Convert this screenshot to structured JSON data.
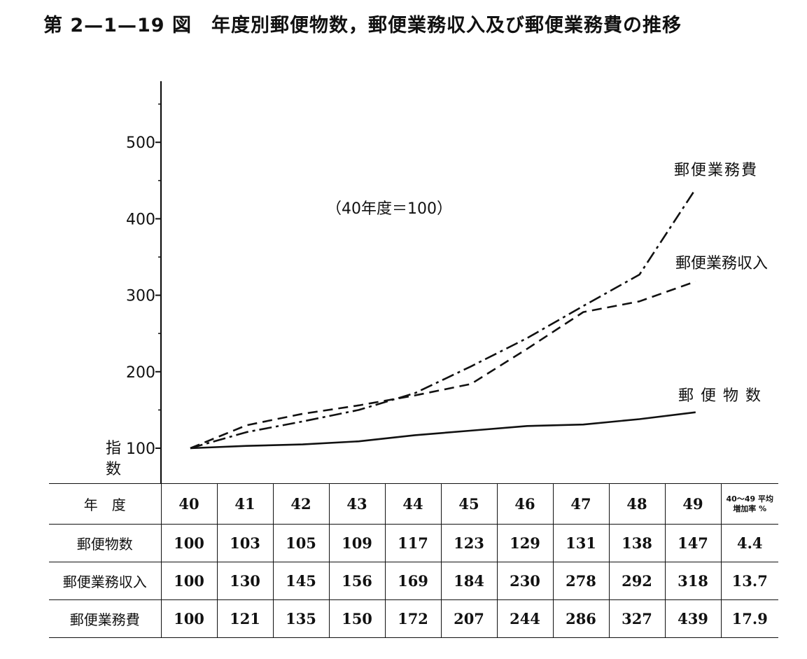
{
  "title": "第 2—1—19 図　年度別郵便物数，郵便業務収入及び郵便業務費の推移",
  "chart_data": {
    "type": "line",
    "note": "（40年度＝100）",
    "ylabel": "指数",
    "ylim": [
      100,
      580
    ],
    "yticks": [
      100,
      200,
      300,
      400,
      500
    ],
    "x": [
      40,
      41,
      42,
      43,
      44,
      45,
      46,
      47,
      48,
      49
    ],
    "series": [
      {
        "name": "郵便物数",
        "values": [
          100,
          103,
          105,
          109,
          117,
          123,
          129,
          131,
          138,
          147
        ],
        "style": "solid"
      },
      {
        "name": "郵便業務収入",
        "values": [
          100,
          130,
          145,
          156,
          169,
          184,
          230,
          278,
          292,
          318
        ],
        "style": "dashed"
      },
      {
        "name": "郵便業務費",
        "values": [
          100,
          121,
          135,
          150,
          172,
          207,
          244,
          286,
          327,
          439
        ],
        "style": "dashdot"
      }
    ],
    "grid": false
  },
  "table": {
    "header_label": "年　度",
    "years": [
      "40",
      "41",
      "42",
      "43",
      "44",
      "45",
      "46",
      "47",
      "48",
      "49"
    ],
    "rate_header_line1": "40～49 平均",
    "rate_header_line2": "増加率 %",
    "rows": [
      {
        "label": "郵便物数",
        "values": [
          "100",
          "103",
          "105",
          "109",
          "117",
          "123",
          "129",
          "131",
          "138",
          "147"
        ],
        "rate": "4.4"
      },
      {
        "label": "郵便業務収入",
        "values": [
          "100",
          "130",
          "145",
          "156",
          "169",
          "184",
          "230",
          "278",
          "292",
          "318"
        ],
        "rate": "13.7"
      },
      {
        "label": "郵便業務費",
        "values": [
          "100",
          "121",
          "135",
          "150",
          "172",
          "207",
          "244",
          "286",
          "327",
          "439"
        ],
        "rate": "17.9"
      }
    ]
  }
}
